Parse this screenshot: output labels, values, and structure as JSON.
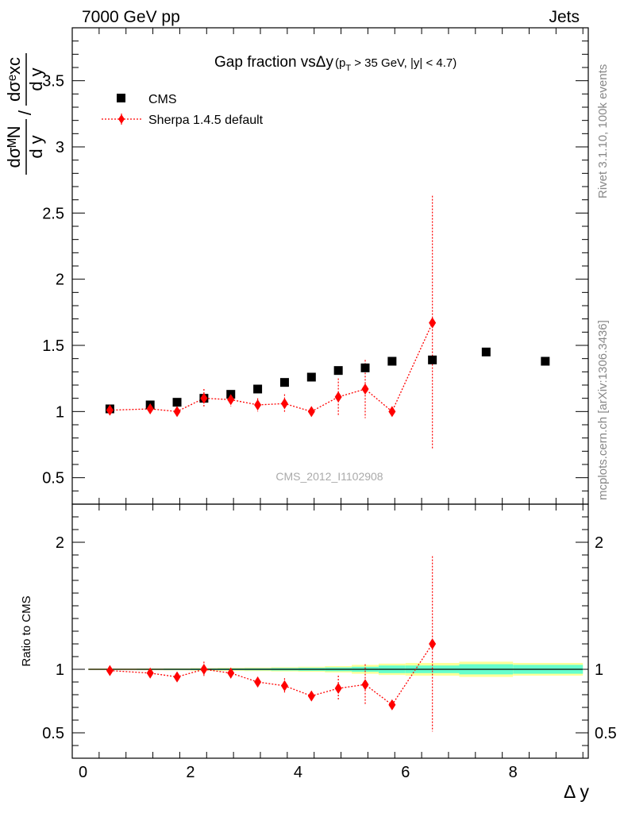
{
  "header": {
    "energy_label": "7000 GeV pp",
    "process_label": "Jets",
    "side_rivet": "Rivet 3.1.10,  100k events",
    "side_mcplots": "mcplots.cern.ch [arXiv:1306.3436]"
  },
  "chart_data": [
    {
      "type": "scatter",
      "panel": "main",
      "title": "Gap fraction vsΔy",
      "title_sub": "(p",
      "title_sub_T": "T",
      "title_sub_rest": " > 35 GeV, |y| < 4.7)",
      "watermark": "CMS_2012_I1102908",
      "ylabel_num": "dσᴹN",
      "ylabel_den": "d y",
      "ylabel_num2": "dσᵉxc",
      "ylabel_den2": "d y",
      "ylim": [
        0.3,
        3.9
      ],
      "xlim": [
        -0.2,
        9.4
      ],
      "yticks": [
        0.5,
        1,
        1.5,
        2,
        2.5,
        3,
        3.5
      ],
      "ytick_labels": [
        "0.5",
        "1",
        "1.5",
        "2",
        "2.5",
        "3",
        "3.5"
      ],
      "legend": [
        "CMS",
        "Sherpa 1.4.5 default"
      ],
      "series": [
        {
          "name": "CMS",
          "color": "#000000",
          "marker": "square",
          "x": [
            0.5,
            1.25,
            1.75,
            2.25,
            2.75,
            3.25,
            3.75,
            4.25,
            4.75,
            5.25,
            5.75,
            6.5,
            7.5,
            8.6
          ],
          "y": [
            1.02,
            1.05,
            1.07,
            1.1,
            1.13,
            1.17,
            1.22,
            1.26,
            1.31,
            1.33,
            1.38,
            1.39,
            1.45,
            1.38
          ]
        },
        {
          "name": "Sherpa 1.4.5 default",
          "color": "#ff0000",
          "marker": "diamond",
          "x": [
            0.5,
            1.25,
            1.75,
            2.25,
            2.75,
            3.25,
            3.75,
            4.25,
            4.75,
            5.25,
            5.75,
            6.5
          ],
          "y": [
            1.01,
            1.02,
            1.0,
            1.1,
            1.09,
            1.05,
            1.06,
            1.0,
            1.11,
            1.17,
            1.0,
            1.67
          ],
          "err": [
            0.02,
            0.03,
            0.03,
            0.07,
            0.05,
            0.05,
            0.07,
            0.03,
            0.14,
            0.22,
            0.02,
            0.96
          ]
        }
      ]
    },
    {
      "type": "scatter",
      "panel": "ratio",
      "ylabel": "Ratio to CMS",
      "xlabel": "Δ y",
      "ylim": [
        0.3,
        2.3
      ],
      "xlim": [
        -0.2,
        9.4
      ],
      "xticks": [
        0,
        2,
        4,
        6,
        8
      ],
      "xtick_labels": [
        "0",
        "2",
        "4",
        "6",
        "8"
      ],
      "yticks": [
        0.5,
        1,
        2
      ],
      "ytick_labels": [
        "0.5",
        "1",
        "2"
      ],
      "band_edges": [
        0.1,
        1.0,
        1.5,
        2.0,
        2.5,
        3.0,
        3.5,
        4.0,
        4.5,
        5.0,
        5.5,
        6.0,
        7.0,
        8.0,
        9.3
      ],
      "band_green": [
        0.003,
        0.004,
        0.005,
        0.006,
        0.007,
        0.008,
        0.01,
        0.012,
        0.015,
        0.02,
        0.03,
        0.03,
        0.04,
        0.035
      ],
      "band_yellow": [
        0.006,
        0.007,
        0.008,
        0.01,
        0.012,
        0.014,
        0.017,
        0.02,
        0.025,
        0.035,
        0.045,
        0.05,
        0.06,
        0.05
      ],
      "band_green_color": "#66ffcc",
      "band_yellow_color": "#ffff99",
      "series": [
        {
          "name": "Sherpa 1.4.5 default",
          "color": "#ff0000",
          "x": [
            0.5,
            1.25,
            1.75,
            2.25,
            2.75,
            3.25,
            3.75,
            4.25,
            4.75,
            5.25,
            5.75,
            6.5
          ],
          "y": [
            0.99,
            0.97,
            0.94,
            1.0,
            0.97,
            0.9,
            0.87,
            0.79,
            0.85,
            0.88,
            0.72,
            1.2
          ],
          "err": [
            0.02,
            0.02,
            0.03,
            0.06,
            0.04,
            0.04,
            0.06,
            0.03,
            0.1,
            0.16,
            0.02,
            0.69
          ]
        }
      ]
    }
  ]
}
